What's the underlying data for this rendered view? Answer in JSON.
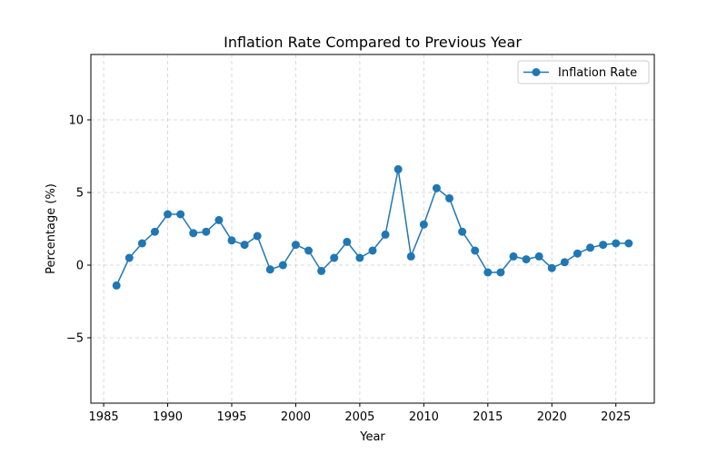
{
  "chart_data": {
    "type": "line",
    "title": "Inflation Rate Compared to Previous Year",
    "xlabel": "Year",
    "ylabel": "Percentage (%)",
    "xlim": [
      1984,
      2028
    ],
    "ylim": [
      -9.5,
      14.5
    ],
    "x_ticks": [
      1985,
      1990,
      1995,
      2000,
      2005,
      2010,
      2015,
      2020,
      2025
    ],
    "y_ticks": [
      -5,
      0,
      5,
      10
    ],
    "y_tick_labels": [
      "−5",
      "0",
      "5",
      "10"
    ],
    "grid": true,
    "legend_position": "top-right",
    "series": [
      {
        "name": "Inflation Rate",
        "color": "#1f77b4",
        "marker": "circle",
        "x": [
          1986,
          1987,
          1988,
          1989,
          1990,
          1991,
          1992,
          1993,
          1994,
          1995,
          1996,
          1997,
          1998,
          1999,
          2000,
          2001,
          2002,
          2003,
          2004,
          2005,
          2006,
          2007,
          2008,
          2009,
          2010,
          2011,
          2012,
          2013,
          2014,
          2015,
          2016,
          2017,
          2018,
          2019,
          2020,
          2021,
          2022,
          2023,
          2024,
          2025,
          2026
        ],
        "values": [
          -1.4,
          0.5,
          1.5,
          2.3,
          3.5,
          3.5,
          2.2,
          2.3,
          3.1,
          1.7,
          1.4,
          2.0,
          -0.3,
          0.0,
          1.4,
          1.0,
          -0.4,
          0.5,
          1.6,
          0.5,
          1.0,
          2.1,
          6.6,
          0.6,
          2.8,
          5.3,
          4.6,
          2.3,
          1.0,
          -0.5,
          -0.5,
          0.6,
          0.4,
          0.6,
          -0.2,
          0.2,
          0.8,
          1.2,
          1.4,
          1.5,
          1.5
        ]
      }
    ]
  }
}
